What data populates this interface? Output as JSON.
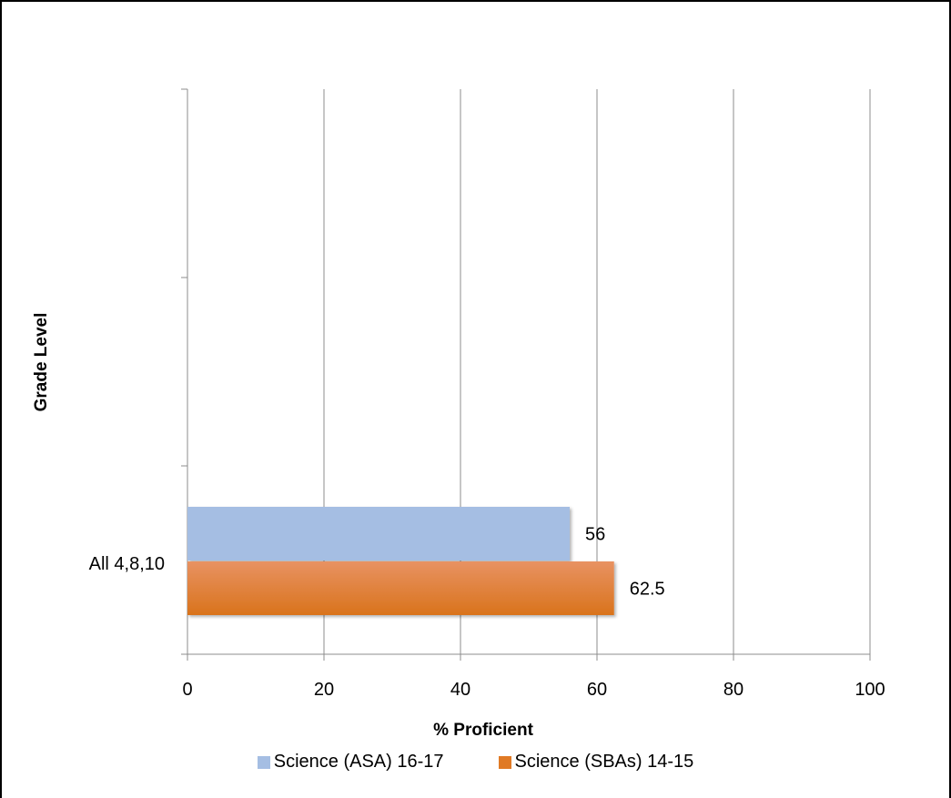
{
  "chart_data": {
    "type": "bar",
    "orientation": "horizontal",
    "categories": [
      "All 4,8,10"
    ],
    "series": [
      {
        "name": "Science (ASA) 16-17",
        "values": [
          56
        ],
        "color": "#a5bee3"
      },
      {
        "name": "Science (SBAs) 14-15",
        "values": [
          62.5
        ],
        "color": "#e07a25"
      }
    ],
    "data_labels": [
      "56",
      "62.5"
    ],
    "xlabel": "% Proficient",
    "ylabel": "Grade Level",
    "xlim": [
      0,
      100
    ],
    "x_ticks": [
      "0",
      "20",
      "40",
      "60",
      "80",
      "100"
    ],
    "grid": "vertical",
    "legend_position": "bottom"
  }
}
